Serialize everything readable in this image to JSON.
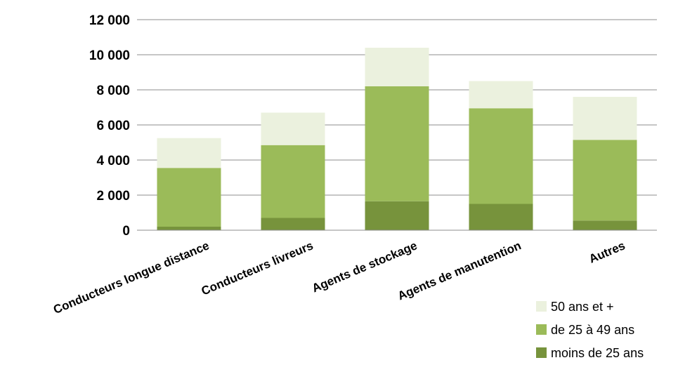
{
  "chart_data": {
    "type": "bar",
    "stacked": true,
    "categories": [
      "Conducteurs longue distance",
      "Conducteurs livreurs",
      "Agents de stockage",
      "Agents de manutention",
      "Autres"
    ],
    "series": [
      {
        "name": "moins de 25 ans",
        "color": "#77933c",
        "values": [
          200,
          700,
          1650,
          1500,
          550
        ]
      },
      {
        "name": " de 25 à 49 ans",
        "color": "#9bbb59",
        "values": [
          3350,
          4150,
          6550,
          5450,
          4600
        ]
      },
      {
        "name": "50 ans et +",
        "color": "#ebf1de",
        "values": [
          1700,
          1850,
          2200,
          1550,
          2450
        ]
      }
    ],
    "y_ticks": [
      "0",
      "2 000",
      "4 000",
      "6 000",
      "8 000",
      "10 000",
      "12 000"
    ],
    "ylim": [
      0,
      12000
    ],
    "grid": true,
    "legend_position": "bottom-right",
    "legend_order": [
      "50 ans et +",
      " de 25 à 49 ans",
      "moins de 25 ans"
    ]
  }
}
